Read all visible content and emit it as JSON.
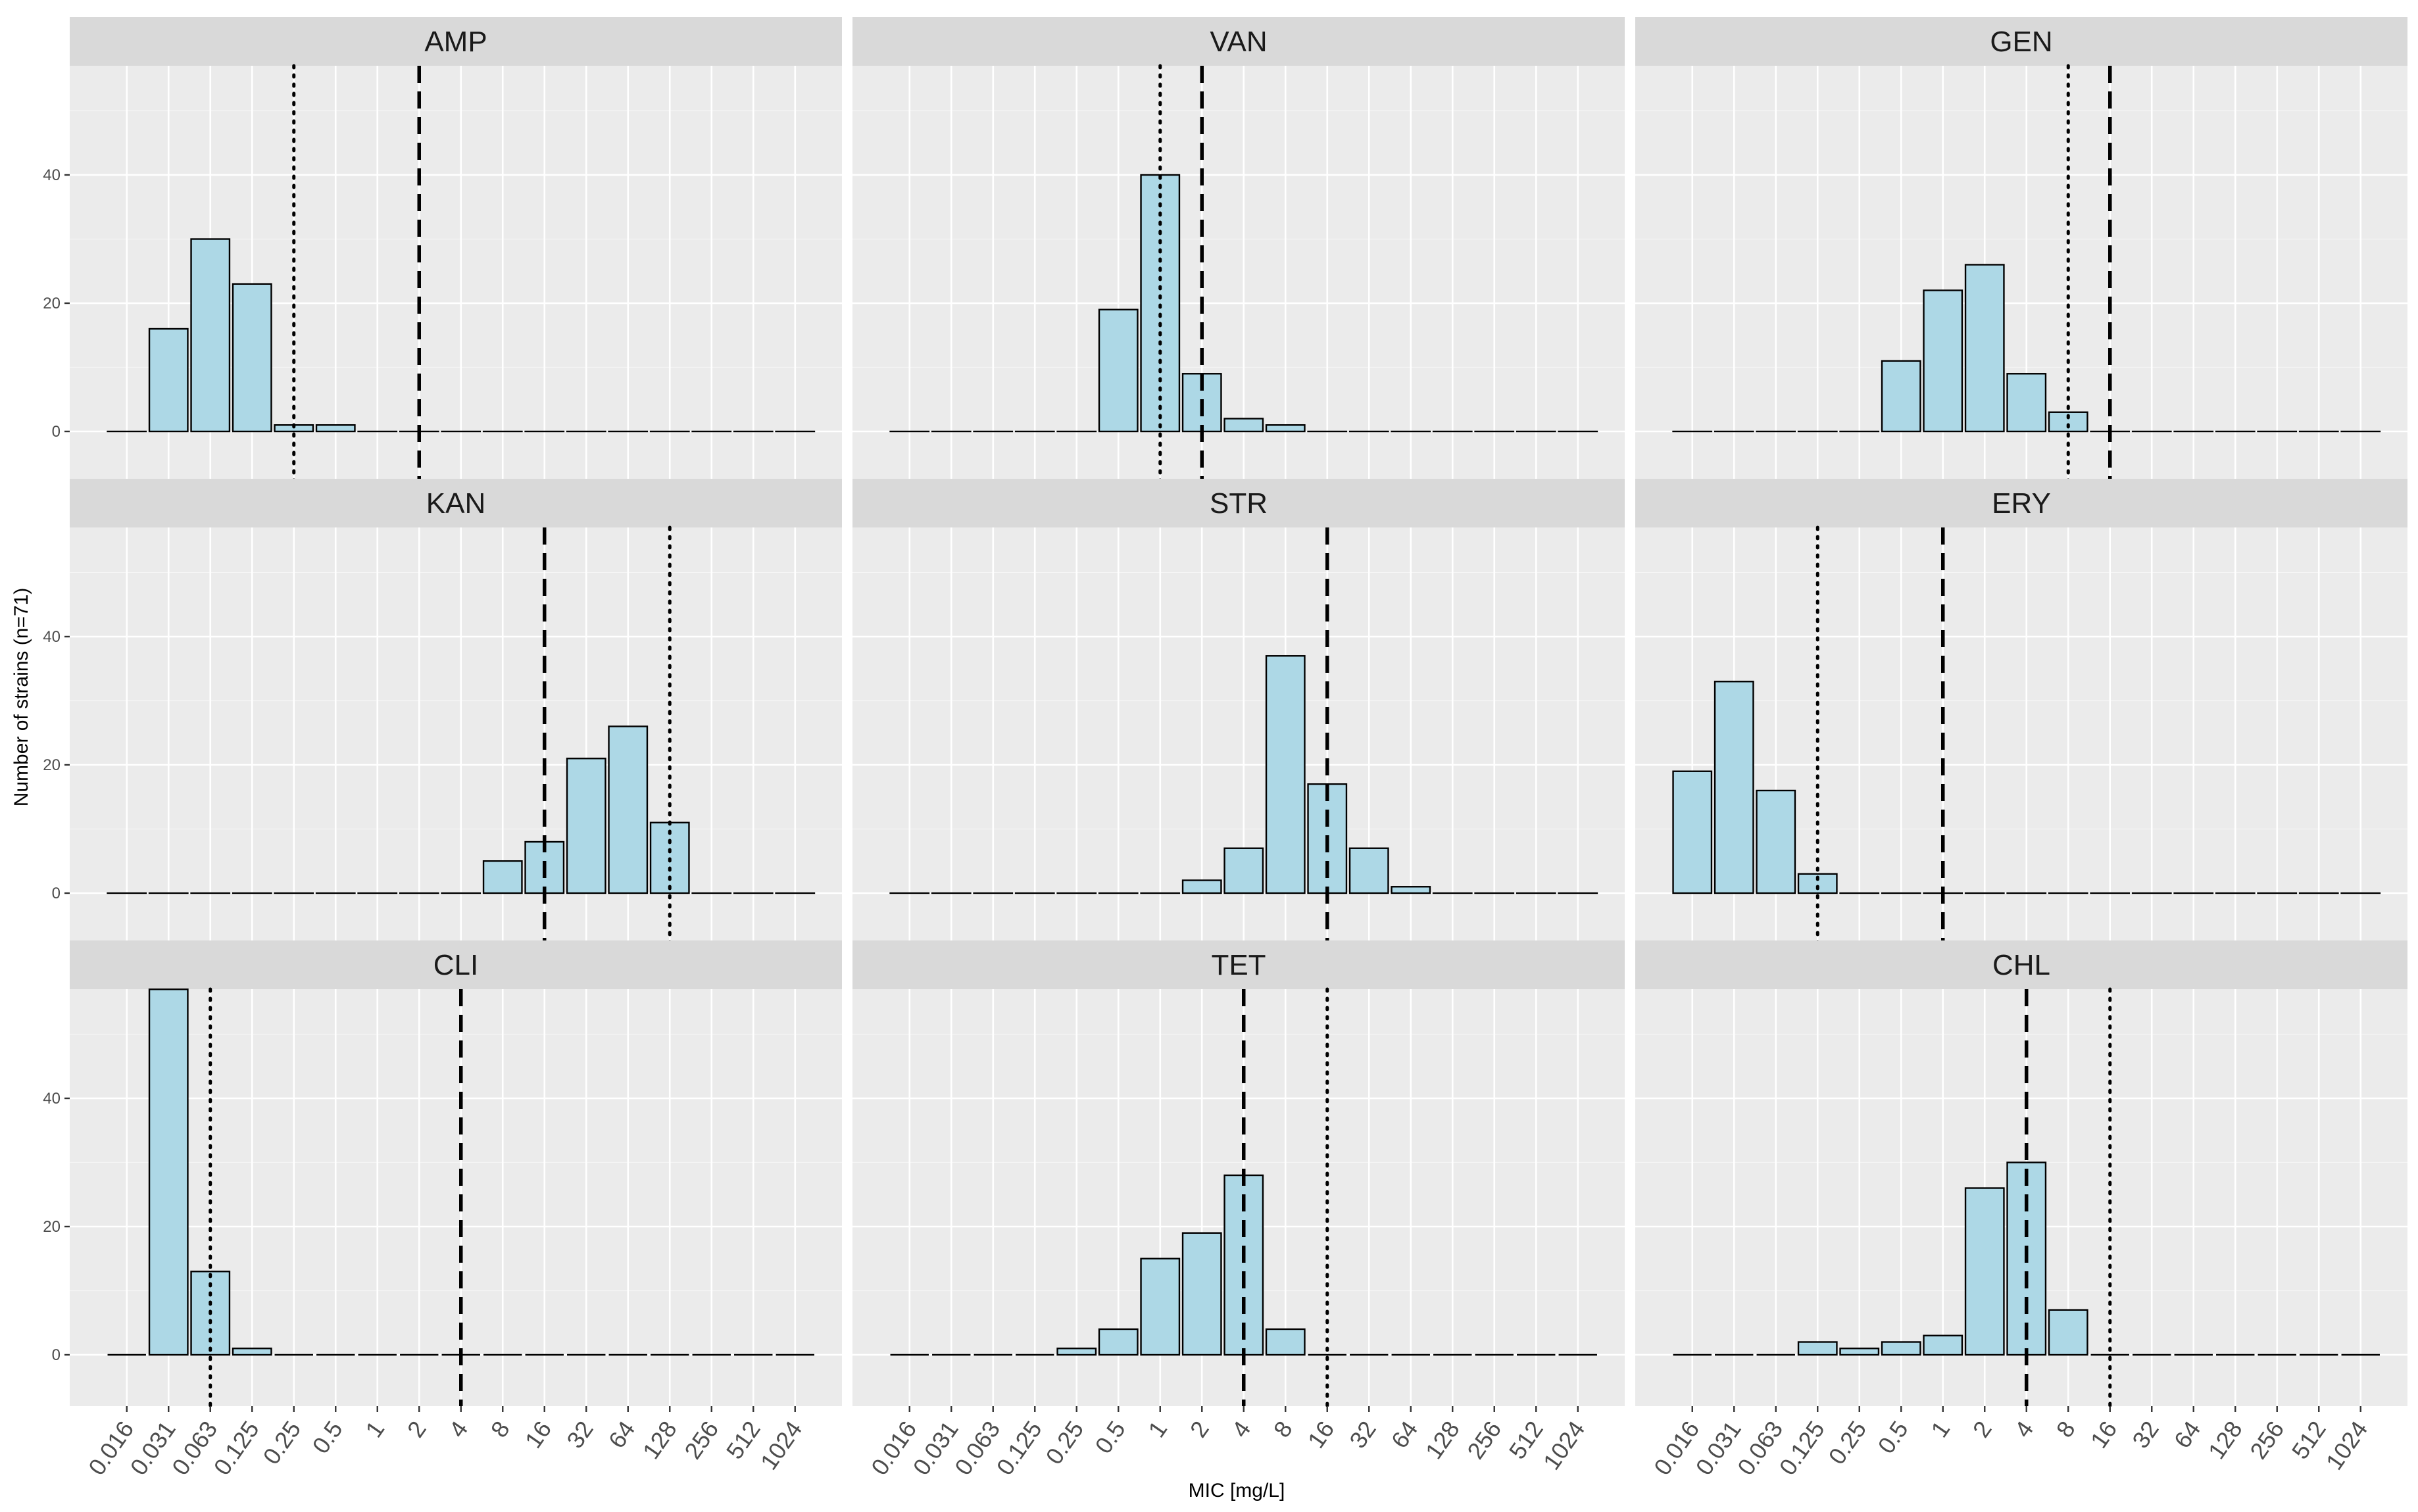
{
  "chart_data": {
    "type": "bar",
    "layout": "facet-grid 3x3",
    "xlabel": "MIC [mg/L]",
    "ylabel": "Number of strains (n=71)",
    "categories": [
      "0.016",
      "0.031",
      "0.063",
      "0.125",
      "0.25",
      "0.5",
      "1",
      "2",
      "4",
      "8",
      "16",
      "32",
      "64",
      "128",
      "256",
      "512",
      "1024"
    ],
    "y_ticks": [
      0,
      20,
      40
    ],
    "ylim": [
      0,
      59
    ],
    "colors": {
      "bar_fill": "#add8e6",
      "bar_stroke": "#000000",
      "panel_background": "#ebebeb",
      "strip_background": "#d9d9d9"
    },
    "panels": [
      {
        "name": "AMP",
        "values": [
          0,
          16,
          30,
          23,
          1,
          1,
          0,
          0,
          0,
          0,
          0,
          0,
          0,
          0,
          0,
          0,
          0
        ],
        "dotted_line": "0.25",
        "dashed_line": "2"
      },
      {
        "name": "VAN",
        "values": [
          0,
          0,
          0,
          0,
          0,
          19,
          40,
          9,
          2,
          1,
          0,
          0,
          0,
          0,
          0,
          0,
          0
        ],
        "dotted_line": "1",
        "dashed_line": "2"
      },
      {
        "name": "GEN",
        "values": [
          0,
          0,
          0,
          0,
          0,
          11,
          22,
          26,
          9,
          3,
          0,
          0,
          0,
          0,
          0,
          0,
          0
        ],
        "dotted_line": "8",
        "dashed_line": "16"
      },
      {
        "name": "KAN",
        "values": [
          0,
          0,
          0,
          0,
          0,
          0,
          0,
          0,
          0,
          5,
          8,
          21,
          26,
          11,
          0,
          0,
          0
        ],
        "dotted_line": "128",
        "dashed_line": "16"
      },
      {
        "name": "STR",
        "values": [
          0,
          0,
          0,
          0,
          0,
          0,
          0,
          2,
          7,
          37,
          17,
          7,
          1,
          0,
          0,
          0,
          0
        ],
        "dotted_line": null,
        "dashed_line": "16"
      },
      {
        "name": "ERY",
        "values": [
          19,
          33,
          16,
          3,
          0,
          0,
          0,
          0,
          0,
          0,
          0,
          0,
          0,
          0,
          0,
          0,
          0
        ],
        "dotted_line": "0.125",
        "dashed_line": "1"
      },
      {
        "name": "CLI",
        "values": [
          0,
          57,
          13,
          1,
          0,
          0,
          0,
          0,
          0,
          0,
          0,
          0,
          0,
          0,
          0,
          0,
          0
        ],
        "dotted_line": "0.063",
        "dashed_line": "4"
      },
      {
        "name": "TET",
        "values": [
          0,
          0,
          0,
          0,
          1,
          4,
          15,
          19,
          28,
          4,
          0,
          0,
          0,
          0,
          0,
          0,
          0
        ],
        "dotted_line": "16",
        "dashed_line": "4"
      },
      {
        "name": "CHL",
        "values": [
          0,
          0,
          0,
          2,
          1,
          2,
          3,
          26,
          30,
          7,
          0,
          0,
          0,
          0,
          0,
          0,
          0
        ],
        "dotted_line": "16",
        "dashed_line": "4"
      }
    ]
  }
}
